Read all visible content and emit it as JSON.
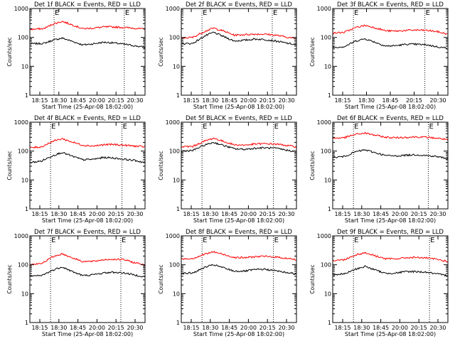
{
  "chart_data": [
    {
      "type": "line",
      "title": "Det 1f BLACK = Events, RED = LLD",
      "xlabel": "Start Time (25-Apr-08 18:02:00)",
      "ylabel": "Counts/sec",
      "x_tick_labels": [
        "18:15",
        "18:30",
        "18:45",
        "20:00",
        "20:15",
        "20:30"
      ],
      "x_range": [
        0,
        100
      ],
      "ylim": [
        1,
        1000
      ],
      "y_scale": "log",
      "y_tick_labels": [
        "1",
        "10",
        "100",
        "1000"
      ],
      "markers": [
        {
          "label": "E",
          "x": 21
        },
        {
          "label": "E",
          "x": 82
        }
      ],
      "series": [
        {
          "name": "Events",
          "color": "#000000",
          "x": [
            0,
            12,
            20,
            28,
            36,
            46,
            55,
            64,
            72,
            82,
            90,
            100
          ],
          "values": [
            60,
            62,
            80,
            95,
            75,
            55,
            60,
            68,
            65,
            58,
            52,
            45
          ]
        },
        {
          "name": "LLD",
          "color": "#ff0000",
          "x": [
            0,
            12,
            20,
            28,
            36,
            46,
            55,
            64,
            72,
            82,
            90,
            100
          ],
          "values": [
            190,
            200,
            290,
            360,
            280,
            200,
            210,
            230,
            230,
            220,
            210,
            190
          ]
        }
      ]
    },
    {
      "type": "line",
      "title": "Det 2f BLACK = Events, RED = LLD",
      "xlabel": "Start Time (25-Apr-08 18:02:00)",
      "ylabel": "Counts/sec",
      "x_tick_labels": [
        "18:15",
        "18:30",
        "18:45",
        "20:00",
        "20:15",
        "20:30"
      ],
      "x_range": [
        0,
        100
      ],
      "ylim": [
        1,
        1000
      ],
      "y_scale": "log",
      "y_tick_labels": [
        "1",
        "10",
        "100",
        "1000"
      ],
      "markers": [
        {
          "label": "E",
          "x": 18
        },
        {
          "label": "E",
          "x": 79
        }
      ],
      "series": [
        {
          "name": "Events",
          "color": "#000000",
          "x": [
            0,
            10,
            20,
            28,
            36,
            46,
            55,
            64,
            72,
            82,
            90,
            100
          ],
          "values": [
            60,
            62,
            110,
            150,
            110,
            75,
            80,
            88,
            85,
            75,
            65,
            55
          ]
        },
        {
          "name": "LLD",
          "color": "#ff0000",
          "x": [
            0,
            10,
            20,
            28,
            36,
            46,
            55,
            64,
            72,
            82,
            90,
            100
          ],
          "values": [
            95,
            100,
            160,
            210,
            170,
            120,
            125,
            130,
            130,
            120,
            105,
            90
          ]
        }
      ]
    },
    {
      "type": "line",
      "title": "Det 3f BLACK = Events, RED = LLD",
      "xlabel": "Start Time (25-Apr-08 18:02:00)",
      "ylabel": "Counts/sec",
      "x_tick_labels": [
        "18:15",
        "18:30",
        "18:45",
        "20:15",
        "20:30"
      ],
      "x_range": [
        0,
        100
      ],
      "ylim": [
        1,
        1000
      ],
      "y_scale": "log",
      "y_tick_labels": [
        "1",
        "10",
        "100",
        "1000"
      ],
      "markers": [
        {
          "label": "E",
          "x": 18
        },
        {
          "label": "E",
          "x": 80
        }
      ],
      "series": [
        {
          "name": "Events",
          "color": "#000000",
          "x": [
            0,
            10,
            20,
            28,
            36,
            46,
            55,
            64,
            72,
            82,
            90,
            100
          ],
          "values": [
            45,
            48,
            75,
            90,
            70,
            50,
            52,
            58,
            58,
            55,
            48,
            42
          ]
        },
        {
          "name": "LLD",
          "color": "#ff0000",
          "x": [
            0,
            10,
            20,
            28,
            36,
            46,
            55,
            64,
            72,
            82,
            90,
            100
          ],
          "values": [
            140,
            150,
            220,
            260,
            220,
            170,
            165,
            175,
            180,
            175,
            160,
            130
          ]
        }
      ]
    },
    {
      "type": "line",
      "title": "Det 4f BLACK = Events, RED = LLD",
      "xlabel": "Start Time (25-Apr-08 18:02:00)",
      "ylabel": "Counts/sec",
      "x_tick_labels": [
        "18:15",
        "18:30",
        "18:45",
        "20:00",
        "20:15",
        "20:30"
      ],
      "x_range": [
        0,
        100
      ],
      "ylim": [
        1,
        1000
      ],
      "y_scale": "log",
      "y_tick_labels": [
        "1",
        "10",
        "100",
        "1000"
      ],
      "markers": [
        {
          "label": "E",
          "x": 18
        },
        {
          "label": "E",
          "x": 80
        }
      ],
      "series": [
        {
          "name": "Events",
          "color": "#000000",
          "x": [
            0,
            10,
            20,
            28,
            36,
            46,
            55,
            64,
            72,
            82,
            90,
            100
          ],
          "values": [
            40,
            45,
            70,
            90,
            68,
            50,
            52,
            60,
            58,
            52,
            48,
            40
          ]
        },
        {
          "name": "LLD",
          "color": "#ff0000",
          "x": [
            0,
            10,
            20,
            28,
            36,
            46,
            55,
            64,
            72,
            82,
            90,
            100
          ],
          "values": [
            130,
            140,
            220,
            270,
            210,
            160,
            150,
            165,
            170,
            160,
            150,
            140
          ]
        }
      ]
    },
    {
      "type": "line",
      "title": "Det 5f BLACK = Events, RED = LLD",
      "xlabel": "Start Time (25-Apr-08 18:02:00)",
      "ylabel": "Counts/sec",
      "x_tick_labels": [
        "18:15",
        "18:30",
        "18:45",
        "20:00",
        "20:15",
        "20:30"
      ],
      "x_range": [
        0,
        100
      ],
      "ylim": [
        1,
        1000
      ],
      "y_scale": "log",
      "y_tick_labels": [
        "1",
        "10",
        "100",
        "1000"
      ],
      "markers": [
        {
          "label": "E",
          "x": 18
        },
        {
          "label": "E",
          "x": 80
        }
      ],
      "series": [
        {
          "name": "Events",
          "color": "#000000",
          "x": [
            0,
            10,
            20,
            28,
            36,
            46,
            55,
            64,
            72,
            82,
            90,
            100
          ],
          "values": [
            100,
            105,
            160,
            200,
            160,
            120,
            115,
            125,
            130,
            125,
            110,
            95
          ]
        },
        {
          "name": "LLD",
          "color": "#ff0000",
          "x": [
            0,
            10,
            20,
            28,
            36,
            46,
            55,
            64,
            72,
            82,
            90,
            100
          ],
          "values": [
            140,
            145,
            220,
            280,
            220,
            165,
            160,
            175,
            180,
            175,
            160,
            140
          ]
        }
      ]
    },
    {
      "type": "line",
      "title": "Det 6f BLACK = Events, RED = LLD",
      "xlabel": "Start Time (25-Apr-08 18:02:00)",
      "ylabel": "Counts/sec",
      "x_tick_labels": [
        "18:15",
        "18:30",
        "18:45",
        "20:00",
        "20:15",
        "20:30"
      ],
      "x_range": [
        0,
        100
      ],
      "ylim": [
        1,
        1000
      ],
      "y_scale": "log",
      "y_tick_labels": [
        "1",
        "10",
        "100",
        "1000"
      ],
      "markers": [
        {
          "label": "E",
          "x": 18
        },
        {
          "label": "E",
          "x": 83
        }
      ],
      "series": [
        {
          "name": "Events",
          "color": "#000000",
          "x": [
            0,
            10,
            20,
            28,
            36,
            46,
            55,
            64,
            72,
            82,
            90,
            100
          ],
          "values": [
            60,
            65,
            95,
            110,
            90,
            70,
            68,
            72,
            75,
            70,
            65,
            55
          ]
        },
        {
          "name": "LLD",
          "color": "#ff0000",
          "x": [
            0,
            10,
            20,
            28,
            36,
            46,
            55,
            64,
            72,
            82,
            90,
            100
          ],
          "values": [
            280,
            290,
            380,
            420,
            360,
            300,
            290,
            300,
            310,
            300,
            280,
            250
          ]
        }
      ]
    },
    {
      "type": "line",
      "title": "Det 7f BLACK = Events, RED = LLD",
      "xlabel": "Start Time (25-Apr-08 18:02:00)",
      "ylabel": "Counts/sec",
      "x_tick_labels": [
        "18:15",
        "18:30",
        "18:45",
        "20:00",
        "20:15",
        "20:30"
      ],
      "x_range": [
        0,
        100
      ],
      "ylim": [
        1,
        1000
      ],
      "y_scale": "log",
      "y_tick_labels": [
        "1",
        "10",
        "100",
        "1000"
      ],
      "markers": [
        {
          "label": "E",
          "x": 18
        },
        {
          "label": "E",
          "x": 79
        }
      ],
      "series": [
        {
          "name": "Events",
          "color": "#000000",
          "x": [
            0,
            10,
            20,
            28,
            36,
            46,
            55,
            64,
            72,
            82,
            90,
            100
          ],
          "values": [
            40,
            42,
            65,
            85,
            60,
            42,
            45,
            52,
            55,
            52,
            45,
            38
          ]
        },
        {
          "name": "LLD",
          "color": "#ff0000",
          "x": [
            0,
            10,
            20,
            28,
            36,
            46,
            55,
            64,
            72,
            82,
            90,
            100
          ],
          "values": [
            100,
            110,
            190,
            240,
            180,
            130,
            130,
            150,
            155,
            150,
            120,
            100
          ]
        }
      ]
    },
    {
      "type": "line",
      "title": "Det 8f BLACK = Events, RED = LLD",
      "xlabel": "Start Time (25-Apr-08 18:02:00)",
      "ylabel": "Counts/sec",
      "x_tick_labels": [
        "18:15",
        "18:30",
        "18:45",
        "20:00",
        "20:15",
        "20:30"
      ],
      "x_range": [
        0,
        100
      ],
      "ylim": [
        1,
        1000
      ],
      "y_scale": "log",
      "y_tick_labels": [
        "1",
        "10",
        "100",
        "1000"
      ],
      "markers": [
        {
          "label": "E",
          "x": 18
        },
        {
          "label": "E",
          "x": 80
        }
      ],
      "series": [
        {
          "name": "Events",
          "color": "#000000",
          "x": [
            0,
            10,
            20,
            28,
            36,
            46,
            55,
            64,
            72,
            82,
            90,
            100
          ],
          "values": [
            50,
            52,
            80,
            100,
            80,
            60,
            60,
            68,
            70,
            62,
            55,
            48
          ]
        },
        {
          "name": "LLD",
          "color": "#ff0000",
          "x": [
            0,
            10,
            20,
            28,
            36,
            46,
            55,
            64,
            72,
            82,
            90,
            100
          ],
          "values": [
            160,
            165,
            230,
            280,
            230,
            180,
            175,
            190,
            195,
            185,
            170,
            150
          ]
        }
      ]
    },
    {
      "type": "line",
      "title": "Det 9f BLACK = Events, RED = LLD",
      "xlabel": "Start Time (25-Apr-08 18:02:00)",
      "ylabel": "Counts/sec",
      "x_tick_labels": [
        "18:15",
        "18:30",
        "18:45",
        "20:00",
        "20:15",
        "20:30"
      ],
      "x_range": [
        0,
        100
      ],
      "ylim": [
        1,
        1000
      ],
      "y_scale": "log",
      "y_tick_labels": [
        "1",
        "10",
        "100",
        "1000"
      ],
      "markers": [
        {
          "label": "E",
          "x": 18
        },
        {
          "label": "E",
          "x": 84
        }
      ],
      "series": [
        {
          "name": "Events",
          "color": "#000000",
          "x": [
            0,
            10,
            20,
            28,
            36,
            46,
            55,
            64,
            72,
            82,
            90,
            100
          ],
          "values": [
            45,
            48,
            70,
            88,
            68,
            50,
            52,
            58,
            58,
            55,
            48,
            42
          ]
        },
        {
          "name": "LLD",
          "color": "#ff0000",
          "x": [
            0,
            10,
            20,
            28,
            36,
            46,
            55,
            64,
            72,
            82,
            90,
            100
          ],
          "values": [
            140,
            150,
            220,
            260,
            210,
            160,
            160,
            175,
            180,
            170,
            155,
            130
          ]
        }
      ]
    }
  ]
}
